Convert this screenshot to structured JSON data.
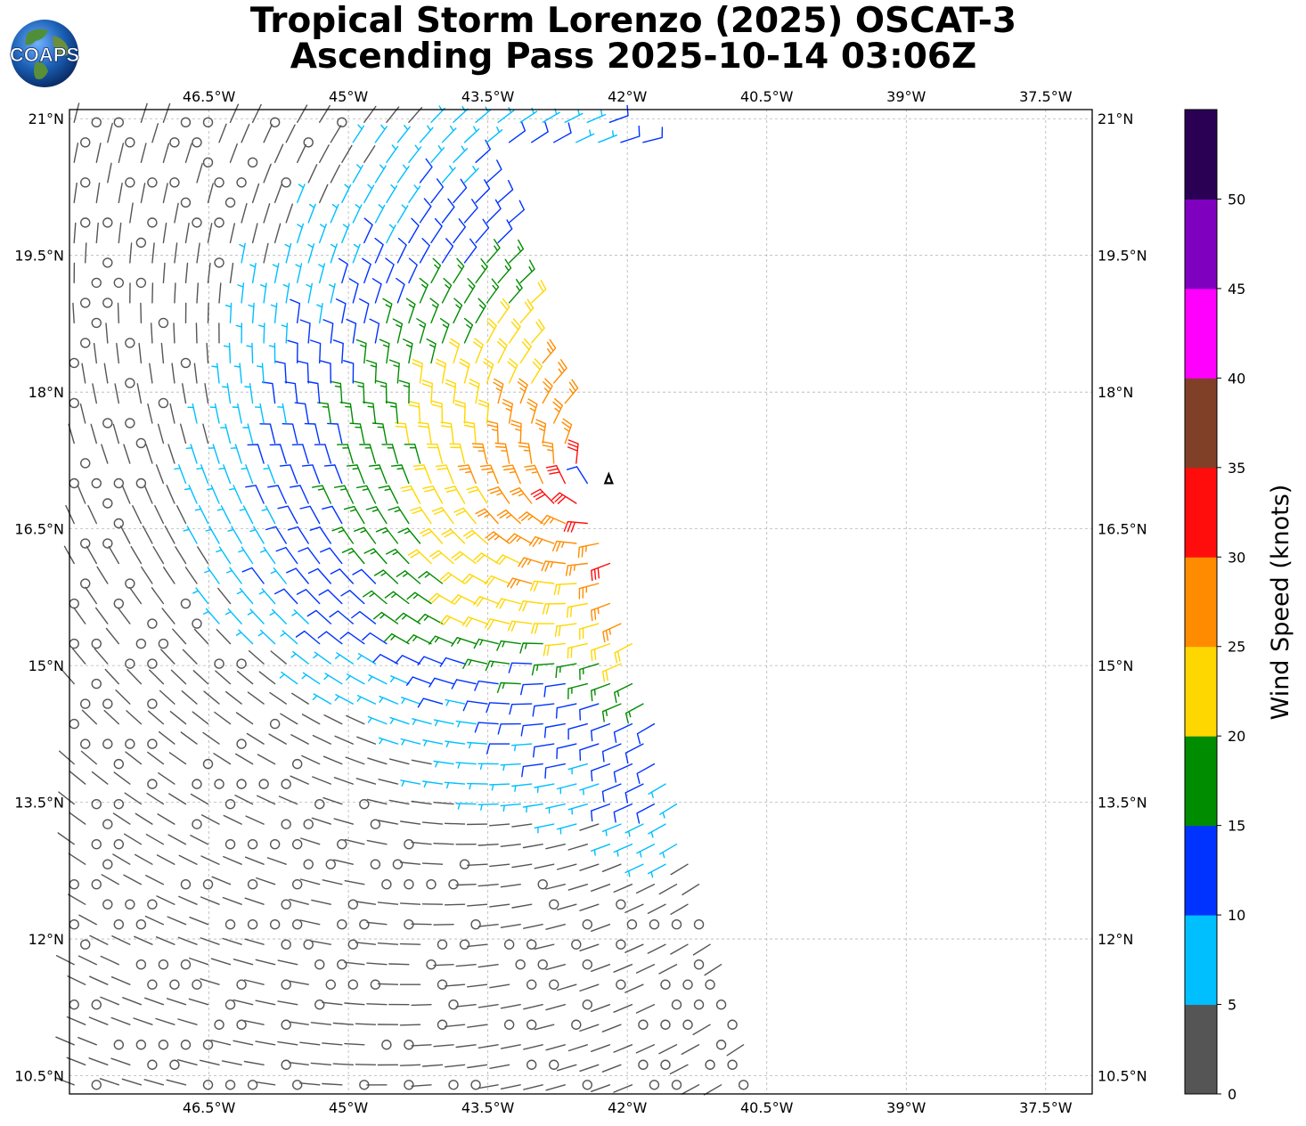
{
  "title": {
    "line1": "Tropical Storm Lorenzo (2025) OSCAT-3",
    "line2": "Ascending Pass 2025-10-14 03:06Z"
  },
  "logo": {
    "text": "COAPS",
    "icon": "globe-logo-icon"
  },
  "map": {
    "lon_range": [
      -48.0,
      -37.0
    ],
    "lat_range": [
      10.3,
      21.1
    ],
    "lon_ticks": [
      "46.5°W",
      "45°W",
      "43.5°W",
      "42°W",
      "40.5°W",
      "39°W",
      "37.5°W"
    ],
    "lon_tick_values": [
      -46.5,
      -45.0,
      -43.5,
      -42.0,
      -40.5,
      -39.0,
      -37.5
    ],
    "lat_ticks": [
      "21°N",
      "19.5°N",
      "18°N",
      "16.5°N",
      "15°N",
      "13.5°N",
      "12°N",
      "10.5°N"
    ],
    "lat_tick_values": [
      21.0,
      19.5,
      18.0,
      16.5,
      15.0,
      13.5,
      12.0,
      10.5
    ],
    "gridlines": true,
    "storm_center": {
      "lon": -42.2,
      "lat": 17.05,
      "icon": "storm-center-icon"
    }
  },
  "colorbar": {
    "label": "Wind Speed (knots)",
    "ticks": [
      "0",
      "5",
      "10",
      "15",
      "20",
      "25",
      "30",
      "35",
      "40",
      "45",
      "50"
    ],
    "bins": [
      {
        "min": 0,
        "max": 5,
        "color": "#555555"
      },
      {
        "min": 5,
        "max": 10,
        "color": "#00bfff"
      },
      {
        "min": 10,
        "max": 15,
        "color": "#0033ff"
      },
      {
        "min": 15,
        "max": 20,
        "color": "#008c00"
      },
      {
        "min": 20,
        "max": 25,
        "color": "#ffd700"
      },
      {
        "min": 25,
        "max": 30,
        "color": "#ff8c00"
      },
      {
        "min": 30,
        "max": 35,
        "color": "#ff0d0d"
      },
      {
        "min": 35,
        "max": 40,
        "color": "#804028"
      },
      {
        "min": 40,
        "max": 45,
        "color": "#ff00ff"
      },
      {
        "min": 45,
        "max": 50,
        "color": "#8000c0"
      },
      {
        "min": 50,
        "max": 55,
        "color": "#2a0054"
      }
    ]
  }
}
